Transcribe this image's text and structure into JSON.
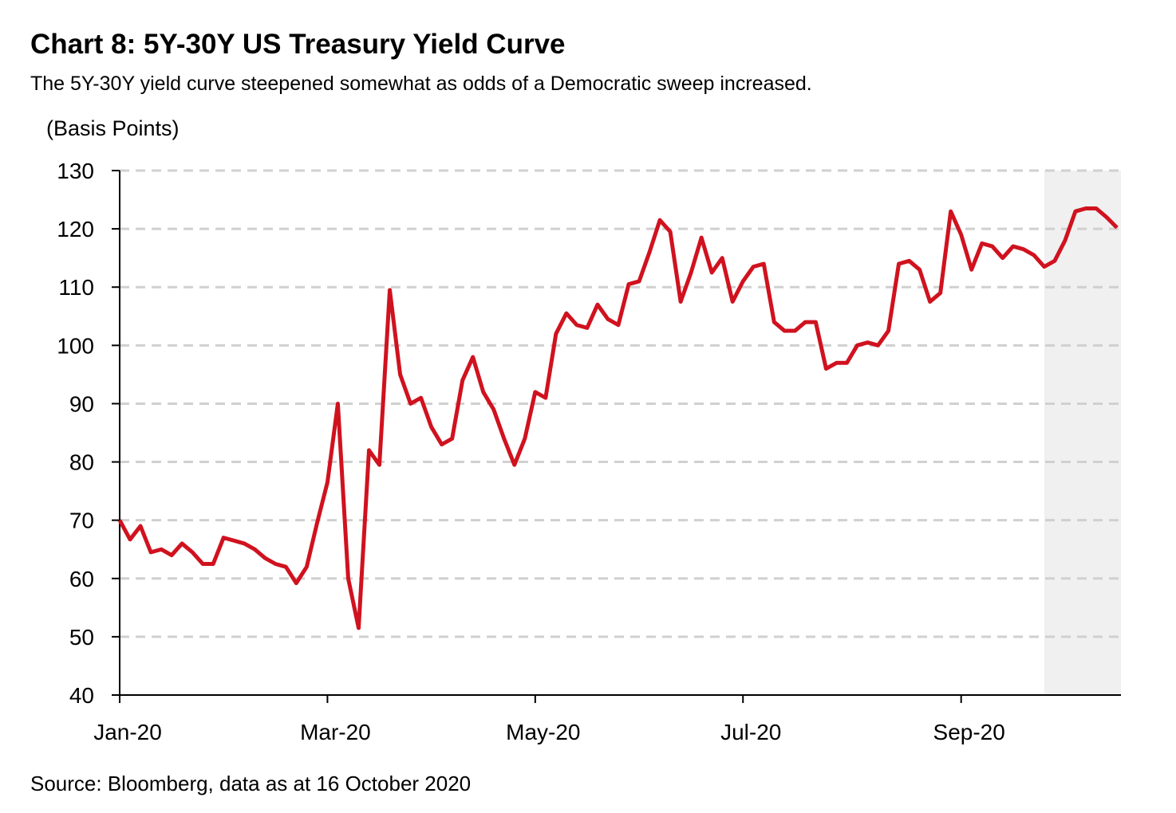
{
  "chart_data": {
    "type": "line",
    "title": "Chart 8: 5Y-30Y US Treasury Yield Curve",
    "subtitle": "The 5Y-30Y yield curve steepened somewhat as odds of a Democratic sweep increased.",
    "y_axis_label": "(Basis Points)",
    "source": "Source: Bloomberg, data as at 16 October 2020",
    "categories": [
      "Jan-20",
      null,
      null,
      null,
      null,
      null,
      null,
      null,
      null,
      null,
      null,
      null,
      null,
      null,
      null,
      null,
      null,
      null,
      null,
      null,
      "Mar-20",
      null,
      null,
      null,
      null,
      null,
      null,
      null,
      null,
      null,
      null,
      null,
      null,
      null,
      null,
      null,
      null,
      null,
      null,
      null,
      "May-20",
      null,
      null,
      null,
      null,
      null,
      null,
      null,
      null,
      null,
      null,
      null,
      null,
      null,
      null,
      null,
      null,
      null,
      null,
      null,
      "Jul-20",
      null,
      null,
      null,
      null,
      null,
      null,
      null,
      null,
      null,
      null,
      null,
      null,
      null,
      null,
      null,
      null,
      null,
      null,
      null,
      null,
      "Sep-20",
      null,
      null,
      null,
      null,
      null,
      null,
      null,
      null,
      null,
      null,
      null,
      null,
      null,
      null,
      null
    ],
    "series": [
      {
        "name": "5Y-30Y",
        "color": "#d0121f",
        "values": [
          70,
          66.7,
          69,
          64.5,
          65,
          64,
          66,
          64.5,
          62.5,
          62.5,
          67,
          66.5,
          66,
          65,
          63.5,
          62.5,
          62,
          59.2,
          62,
          69.5,
          76.5,
          90,
          60,
          51.5,
          82,
          79.5,
          109.5,
          95,
          90,
          91,
          86,
          83,
          84,
          94,
          98,
          92,
          89,
          84,
          79.5,
          84,
          92,
          91,
          102,
          105.5,
          103.5,
          103,
          107,
          104.5,
          103.5,
          110.5,
          111,
          116,
          121.5,
          119.5,
          107.5,
          112.5,
          118.5,
          112.5,
          115,
          107.5,
          111,
          113.5,
          114,
          104,
          102.5,
          102.5,
          104,
          104,
          96,
          97,
          97,
          100,
          100.5,
          100,
          102.5,
          114,
          114.5,
          113,
          107.5,
          109,
          123,
          119,
          113,
          117.5,
          117,
          115,
          117,
          116.5,
          115.5,
          113.5,
          114.5,
          118,
          123,
          123.5,
          123.5,
          122,
          120.2
        ]
      }
    ],
    "ylim": [
      40,
      130
    ],
    "yticks": [
      40,
      50,
      60,
      70,
      80,
      90,
      100,
      110,
      120,
      130
    ],
    "grid": true,
    "shaded_range": [
      89,
      96
    ],
    "shade_color": "#f0f0f0"
  }
}
